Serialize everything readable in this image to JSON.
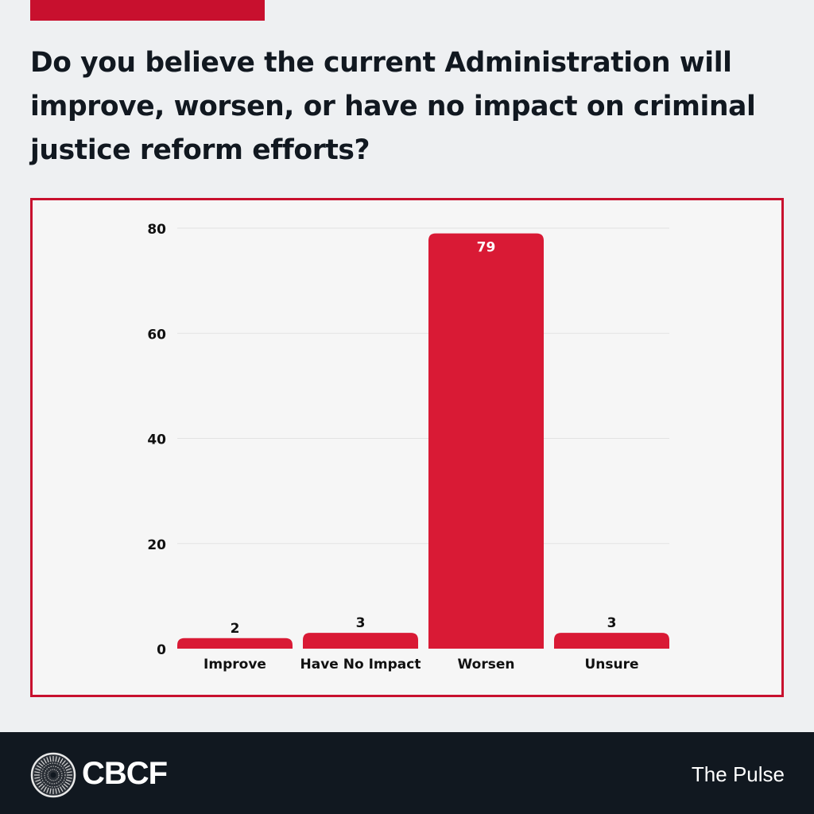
{
  "header": {
    "title": "Do you believe the current Administration will improve, worsen, or have no impact on criminal justice reform efforts?",
    "title_lines": [
      "Do you believe the current Administration will",
      "improve, worsen, or have no impact on criminal",
      "justice reform efforts?"
    ]
  },
  "colors": {
    "accent": "#c8102e",
    "bar": "#d91a35",
    "text_dark": "#111820",
    "footer_bg": "#111820",
    "chart_bg": "#f6f6f6",
    "grid": "#e3e3e3"
  },
  "chart_data": {
    "type": "bar",
    "title": "Do you believe the current Administration will improve, worsen, or have no impact on criminal justice reform efforts?",
    "categories": [
      "Improve",
      "Have No Impact",
      "Worsen",
      "Unsure"
    ],
    "values": [
      2,
      3,
      79,
      3
    ],
    "data_labels": [
      "2",
      "3",
      "79",
      "3"
    ],
    "xlabel": "",
    "ylabel": "",
    "ylim": [
      0,
      80
    ],
    "yticks": [
      0,
      20,
      40,
      60,
      80
    ],
    "ytick_labels": [
      "0",
      "20",
      "40",
      "60",
      "80"
    ],
    "grid": true,
    "legend": "none"
  },
  "footer": {
    "logo_text": "CBCF",
    "logo_icon": "cbcf-seal-icon",
    "right_text": "The Pulse"
  }
}
